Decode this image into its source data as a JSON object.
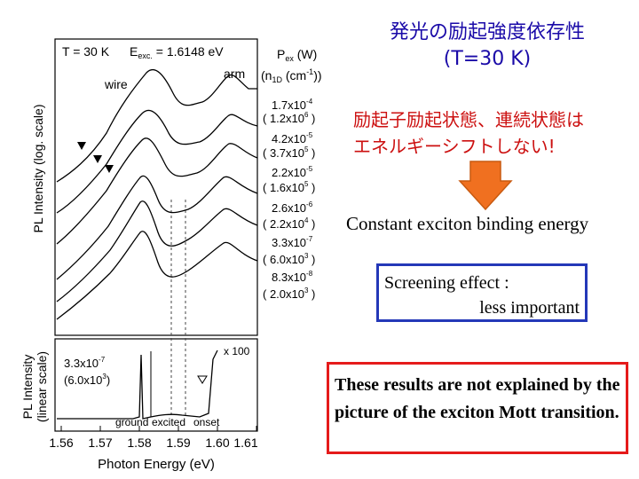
{
  "slide": {
    "title_line1": "発光の励起強度依存性",
    "title_line2": "(T=30 K)",
    "note_line1": "励起子励起状態、連続状態は",
    "note_line2": "エネルギーシフトしない!",
    "conclusion": "Constant exciton binding energy",
    "screening_line1": "Screening effect :",
    "screening_line2": "less important",
    "mott_text": "These results are not explained by the picture of the exciton Mott transition.",
    "arrow_color": "#f07020"
  },
  "figure": {
    "temp_label": "T = 30 K",
    "eexc_label": "E",
    "eexc_sub": "exc.",
    "eexc_value": " = 1.6148 eV",
    "pex_label": "P",
    "pex_sub": "ex",
    "pex_unit": " (W)",
    "n1d_open": "(n",
    "n1d_sub": "1D",
    "n1d_unit": " (cm",
    "n1d_exp": "-1",
    "n1d_close": "))",
    "wire_label": "wire",
    "arm_label": "arm",
    "top_ylabel": "PL Intensity (log. scale)",
    "bottom_ylabel_1": "PL Intensity",
    "bottom_ylabel_2": "(linear scale)",
    "xlabel": "Photon Energy (eV)",
    "ground_label": "ground",
    "excited_label": "excited",
    "onset_label": "onset",
    "x100_label": "x 100",
    "bottom_pex": "3.3x10",
    "bottom_pex_exp": "-7",
    "bottom_n1d": "(6.0x10",
    "bottom_n1d_exp": "3",
    "bottom_n1d_close": ")",
    "xticks": [
      "1.56",
      "1.57",
      "1.58",
      "1.59",
      "1.60",
      "1.61"
    ],
    "series_labels": [
      {
        "pex": "1.7x10",
        "pex_exp": "-4",
        "n": "( 1.2x10",
        "n_exp": "6",
        "close": " )"
      },
      {
        "pex": "4.2x10",
        "pex_exp": "-5",
        "n": "( 3.7x10",
        "n_exp": "5",
        "close": " )"
      },
      {
        "pex": "2.2x10",
        "pex_exp": "-5",
        "n": "( 1.6x10",
        "n_exp": "5",
        "close": " )"
      },
      {
        "pex": "2.6x10",
        "pex_exp": "-6",
        "n": "( 2.2x10",
        "n_exp": "4",
        "close": " )"
      },
      {
        "pex": "3.3x10",
        "pex_exp": "-7",
        "n": "( 6.0x10",
        "n_exp": "3",
        "close": " )"
      },
      {
        "pex": "8.3x10",
        "pex_exp": "-8",
        "n": "( 2.0x10",
        "n_exp": "3",
        "close": " )"
      }
    ]
  }
}
